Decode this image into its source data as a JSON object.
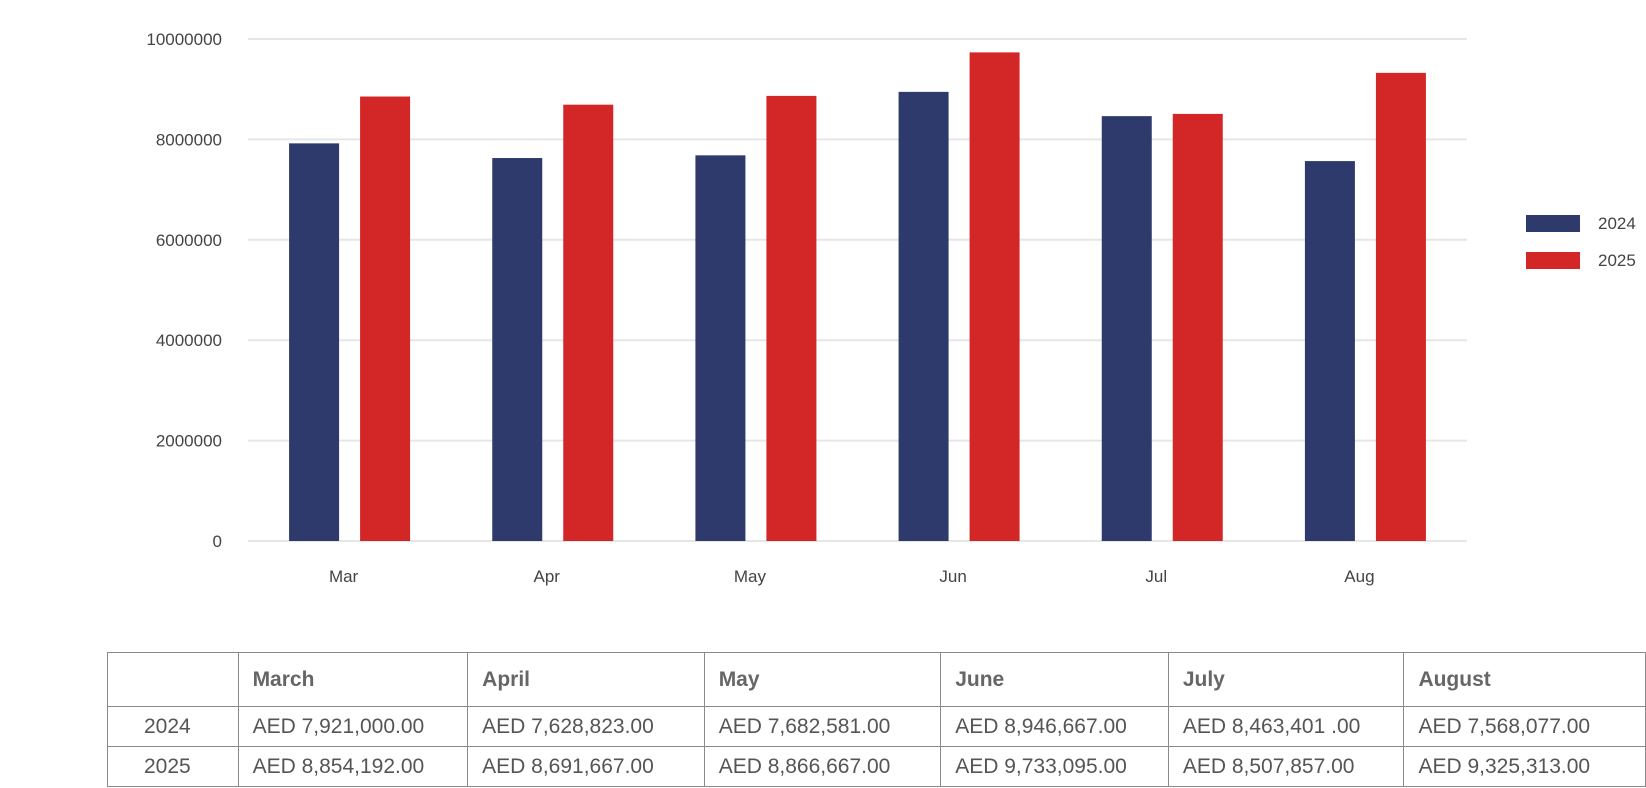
{
  "chart_data": {
    "type": "bar",
    "categories": [
      "Mar",
      "Apr",
      "May",
      "Jun",
      "Jul",
      "Aug"
    ],
    "series": [
      {
        "name": "2024",
        "values": [
          7921000,
          7628823,
          7682581,
          8946667,
          8463401,
          7568077
        ],
        "color": "#2e3a6c"
      },
      {
        "name": "2025",
        "values": [
          8854192,
          8691667,
          8866667,
          9733095,
          8507857,
          9325313
        ],
        "color": "#d32626"
      }
    ],
    "yticks": [
      "0",
      "2000000",
      "4000000",
      "6000000",
      "8000000",
      "10000000"
    ],
    "ylim": [
      0,
      10000000
    ],
    "grid": true,
    "legend_position": "right",
    "title": "",
    "xlabel": "",
    "ylabel": ""
  },
  "table": {
    "headers": [
      "",
      "March",
      "April",
      "May",
      "June",
      "July",
      "August"
    ],
    "rows": [
      {
        "label": "2024",
        "cells": [
          "AED 7,921,000.00",
          "AED 7,628,823.00",
          "AED 7,682,581.00",
          "AED 8,946,667.00",
          "AED 8,463,401 .00",
          "AED 7,568,077.00"
        ]
      },
      {
        "label": "2025",
        "cells": [
          "AED 8,854,192.00",
          "AED 8,691,667.00",
          "AED 8,866,667.00",
          "AED 9,733,095.00",
          "AED 8,507,857.00",
          "AED 9,325,313.00"
        ]
      }
    ]
  }
}
